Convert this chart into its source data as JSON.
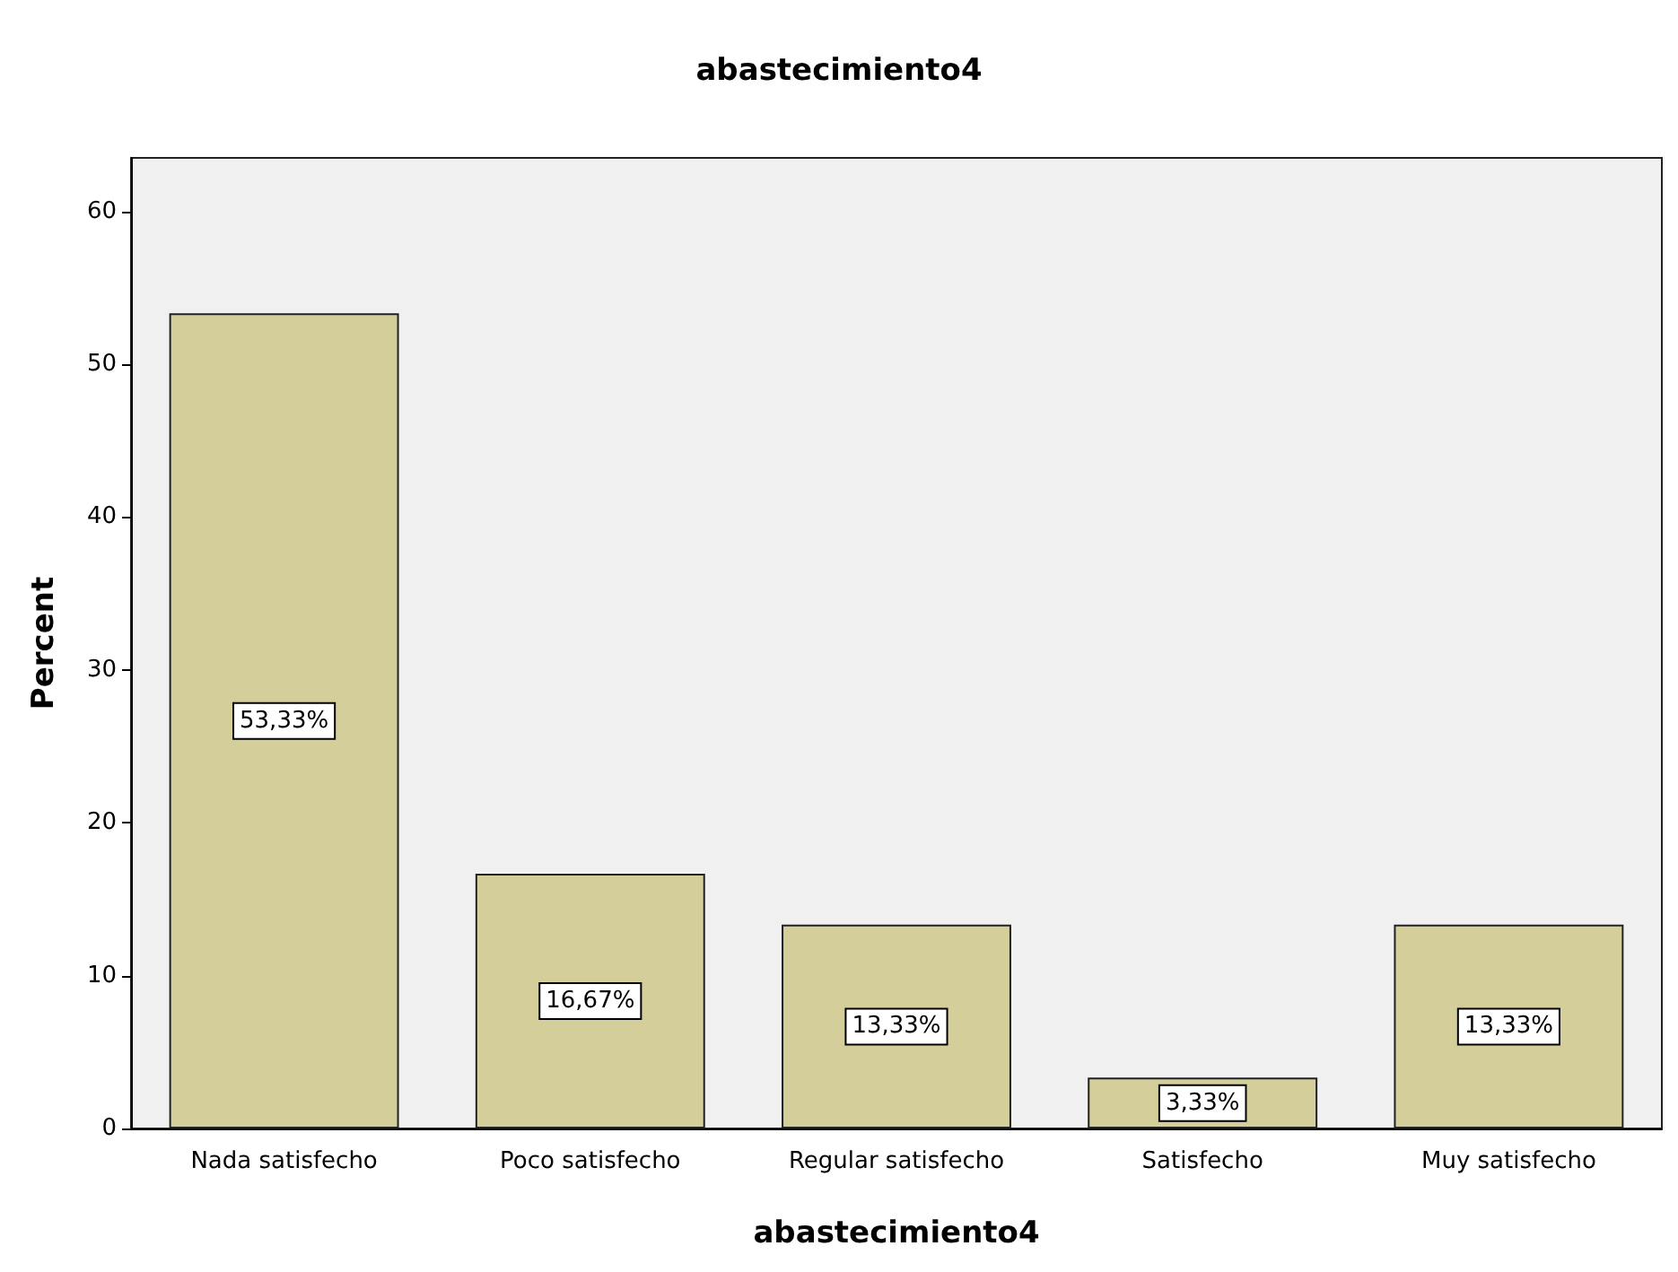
{
  "chart_data": {
    "type": "bar",
    "title": "abastecimiento4",
    "xlabel": "abastecimiento4",
    "ylabel": "Percent",
    "categories": [
      "Nada satisfecho",
      "Poco satisfecho",
      "Regular satisfecho",
      "Satisfecho",
      "Muy satisfecho"
    ],
    "values": [
      53.33,
      16.67,
      13.33,
      3.33,
      13.33
    ],
    "value_labels": [
      "53,33%",
      "16,67%",
      "13,33%",
      "3,33%",
      "13,33%"
    ],
    "color": "#d3ce9a",
    "ylim": [
      0,
      63.5
    ],
    "yticks": [
      0,
      10,
      20,
      30,
      40,
      50,
      60
    ]
  }
}
